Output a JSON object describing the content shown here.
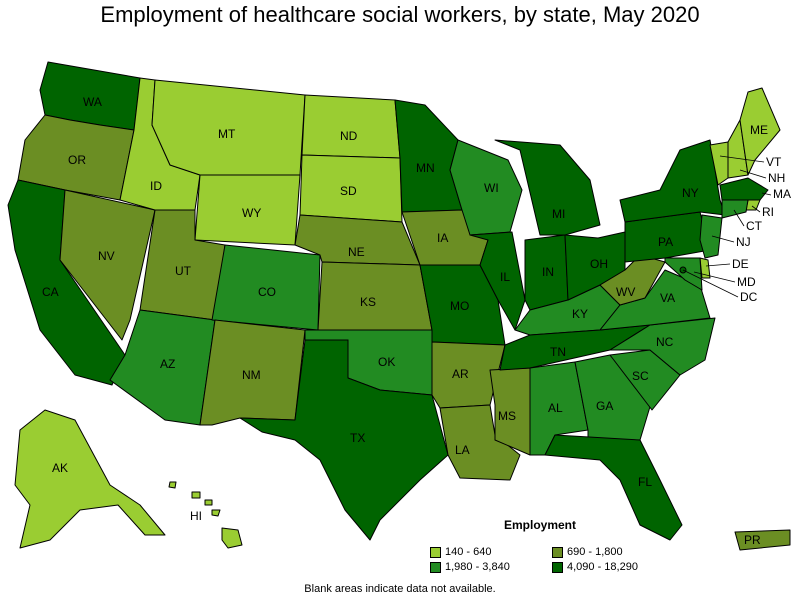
{
  "title": "Employment of healthcare social workers, by state, May 2020",
  "legend": {
    "title": "Employment",
    "bins": [
      {
        "label": "140 - 640",
        "color": "#9acd32"
      },
      {
        "label": "690 - 1,800",
        "color": "#6b8e23"
      },
      {
        "label": "1,980 - 3,840",
        "color": "#228b22"
      },
      {
        "label": "4,090 - 18,290",
        "color": "#006400"
      }
    ]
  },
  "footnote": "Blank areas indicate data not available.",
  "states": {
    "WA": 3,
    "OR": 1,
    "CA": 3,
    "NV": 1,
    "ID": 0,
    "MT": 0,
    "WY": 0,
    "UT": 1,
    "AZ": 2,
    "CO": 2,
    "NM": 1,
    "ND": 0,
    "SD": 0,
    "NE": 1,
    "KS": 1,
    "OK": 2,
    "TX": 3,
    "MN": 3,
    "IA": 1,
    "MO": 3,
    "AR": 1,
    "LA": 1,
    "WI": 2,
    "IL": 3,
    "MS": 1,
    "MI": 3,
    "IN": 3,
    "KY": 2,
    "TN": 3,
    "AL": 2,
    "OH": 3,
    "GA": 2,
    "FL": 3,
    "SC": 2,
    "NC": 2,
    "VA": 2,
    "WV": 1,
    "PA": 3,
    "NY": 3,
    "VT": 0,
    "NH": 0,
    "ME": 0,
    "MA": 3,
    "RI": 0,
    "CT": 2,
    "NJ": 2,
    "DE": 0,
    "MD": 2,
    "DC": 3,
    "AK": 0,
    "HI": 0,
    "PR": 1
  }
}
